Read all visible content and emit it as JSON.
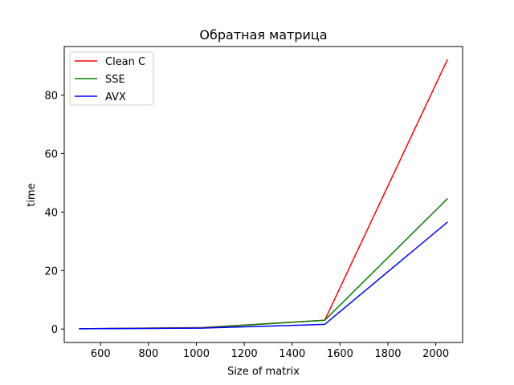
{
  "chart_data": {
    "type": "line",
    "title": "Обратная матрица",
    "xlabel": "Size of matrix",
    "ylabel": "time",
    "xlim": [
      448,
      2112
    ],
    "ylim": [
      -4.6,
      96.6
    ],
    "xticks": [
      600,
      800,
      1000,
      1200,
      1400,
      1600,
      1800,
      2000
    ],
    "yticks": [
      0,
      20,
      40,
      60,
      80
    ],
    "grid": false,
    "legend_position": "top-left",
    "x": [
      512,
      1024,
      1536,
      2048
    ],
    "series": [
      {
        "name": "Clean C",
        "color": "#ff0000",
        "values": [
          0.1,
          0.5,
          3.0,
          92.0
        ]
      },
      {
        "name": "SSE",
        "color": "#008000",
        "values": [
          0.1,
          0.4,
          3.0,
          44.5
        ]
      },
      {
        "name": "AVX",
        "color": "#0000ff",
        "values": [
          0.1,
          0.3,
          1.6,
          36.5
        ]
      }
    ]
  }
}
